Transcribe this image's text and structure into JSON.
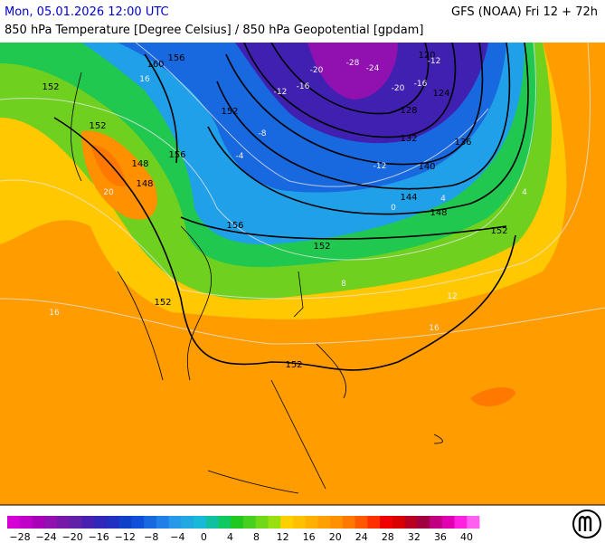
{
  "header": {
    "datetime": "Mon, 05.01.2026 12:00 UTC",
    "model": "GFS (NOAA) Fri 12 + 72h",
    "subtitle": "850 hPa Temperature [Degree Celsius] / 850 hPa Geopotential [gpdam]"
  },
  "contour_labels": [
    "160",
    "156",
    "152",
    "152",
    "156",
    "148",
    "148",
    "156",
    "152",
    "152",
    "120",
    "124",
    "128",
    "132",
    "136",
    "140",
    "144",
    "148",
    "152",
    "152",
    "152"
  ],
  "temperature_labels": [
    "-28",
    "-24",
    "-20",
    "-20",
    "-16",
    "-16",
    "-12",
    "-12",
    "-12",
    "-8",
    "-4",
    "0",
    "4",
    "4",
    "8",
    "12",
    "16",
    "16",
    "16",
    "20"
  ],
  "colorbar": {
    "labels": [
      "−28",
      "−24",
      "−20",
      "−16",
      "−12",
      "−8",
      "−4",
      "0",
      "4",
      "8",
      "12",
      "16",
      "20",
      "24",
      "28",
      "32",
      "36",
      "40"
    ],
    "colors": [
      "#d400d4",
      "#c000c8",
      "#a800b8",
      "#9010b0",
      "#7818a8",
      "#6020a8",
      "#4820b0",
      "#3028b8",
      "#2030c0",
      "#1040c8",
      "#1050d8",
      "#1868e0",
      "#2080e8",
      "#2898e8",
      "#20a8e0",
      "#18b8d8",
      "#10c0a0",
      "#10c860",
      "#20c820",
      "#48d020",
      "#70d818",
      "#98e010",
      "#ffd000",
      "#ffc000",
      "#ffb000",
      "#ffa000",
      "#ff9000",
      "#ff7800",
      "#ff5800",
      "#ff3000",
      "#f00000",
      "#d80000",
      "#b80020",
      "#a00040",
      "#c00080",
      "#e000b0",
      "#ff20e0",
      "#ff60f0"
    ]
  }
}
